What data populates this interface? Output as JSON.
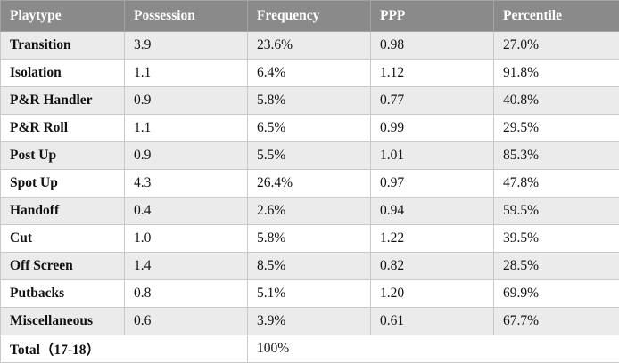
{
  "table": {
    "headers": [
      "Playtype",
      "Possession",
      "Frequency",
      "PPP",
      "Percentile"
    ],
    "rows": [
      [
        "Transition",
        "3.9",
        "23.6%",
        "0.98",
        "27.0%"
      ],
      [
        "Isolation",
        "1.1",
        "6.4%",
        "1.12",
        "91.8%"
      ],
      [
        "P&R Handler",
        "0.9",
        "5.8%",
        "0.77",
        "40.8%"
      ],
      [
        "P&R Roll",
        "1.1",
        "6.5%",
        "0.99",
        "29.5%"
      ],
      [
        "Post Up",
        "0.9",
        "5.5%",
        "1.01",
        "85.3%"
      ],
      [
        "Spot Up",
        "4.3",
        "26.4%",
        "0.97",
        "47.8%"
      ],
      [
        "Handoff",
        "0.4",
        "2.6%",
        "0.94",
        "59.5%"
      ],
      [
        "Cut",
        "1.0",
        "5.8%",
        "1.22",
        "39.5%"
      ],
      [
        "Off Screen",
        "1.4",
        "8.5%",
        "0.82",
        "28.5%"
      ],
      [
        "Putbacks",
        "0.8",
        "5.1%",
        "1.20",
        "69.9%"
      ],
      [
        "Miscellaneous",
        "0.6",
        "3.9%",
        "0.61",
        "67.7%"
      ]
    ],
    "total": {
      "label": "Total（17-18）",
      "frequency": "100%"
    }
  },
  "colors": {
    "header_bg": "#8a8a8a",
    "header_text": "#ffffff",
    "row_stripe": "#ebebeb",
    "row_plain": "#ffffff",
    "border": "#c9c9c9"
  }
}
